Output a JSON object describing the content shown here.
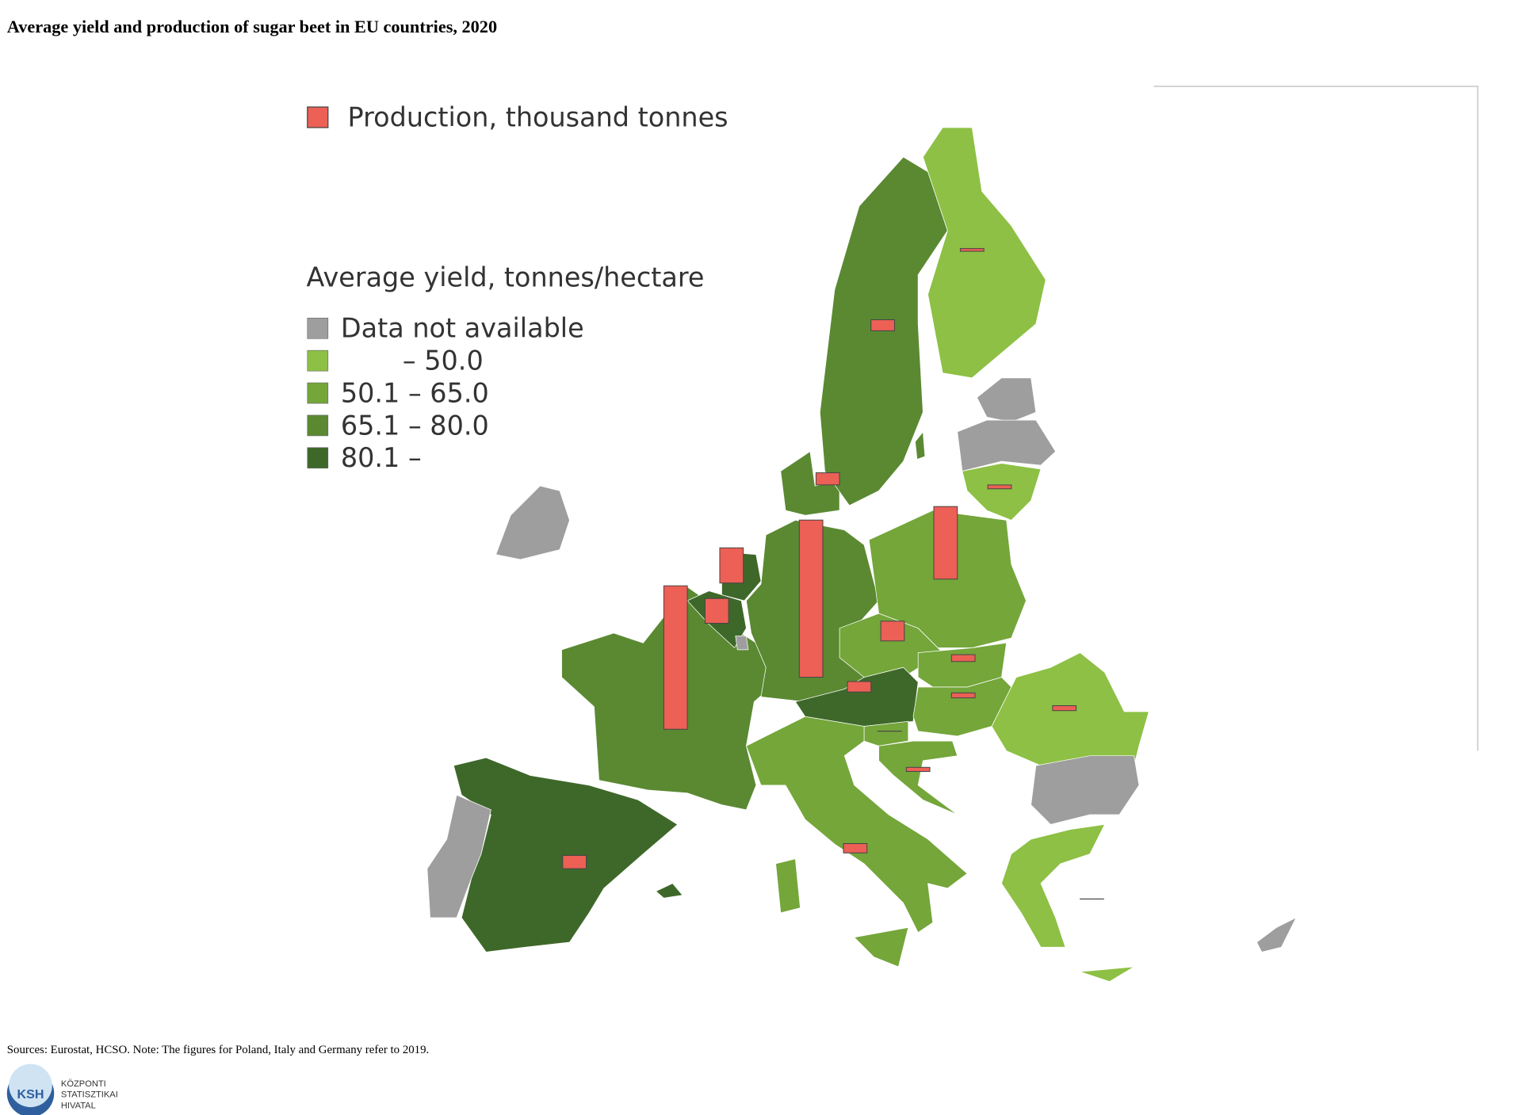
{
  "title": "Average yield and production of sugar beet in EU countries, 2020",
  "legend": {
    "production_label": "Production, thousand tonnes",
    "production_color": "#ec6055",
    "yield_title": "Average yield, tonnes/hectare",
    "na": {
      "label": "Data not available",
      "color": "#9e9e9e"
    },
    "classes": [
      {
        "label": "– 50.0",
        "upto": 50,
        "color": "#8dc044"
      },
      {
        "label": "50.1 – 65.0",
        "upto": 65,
        "color": "#74a63a"
      },
      {
        "label": "65.1 – 80.0",
        "upto": 80,
        "color": "#5a8932"
      },
      {
        "label": "80.1 –",
        "upto": null,
        "color": "#3e6829"
      }
    ]
  },
  "regions": [
    {
      "yield": 72,
      "production": 26100
    },
    {
      "yield": 85,
      "production": 2400
    },
    {
      "yield": null,
      "production": null
    },
    {
      "yield": 82,
      "production": 4500
    },
    {
      "yield": 83,
      "production": 6400
    },
    {
      "yield": null,
      "production": null
    },
    {
      "yield": 74,
      "production": 28600
    },
    {
      "yield": 70,
      "production": 2200
    },
    {
      "yield": 68,
      "production": 2000
    },
    {
      "yield": 40,
      "production": 500
    },
    {
      "yield": null,
      "production": null
    },
    {
      "yield": null,
      "production": null
    },
    {
      "yield": 48,
      "production": 700
    },
    {
      "yield": 60,
      "production": 13200
    },
    {
      "yield": 60,
      "production": 3600
    },
    {
      "yield": 58,
      "production": 1250
    },
    {
      "yield": 82,
      "production": 1900
    },
    {
      "yield": 58,
      "production": 900
    },
    {
      "yield": 56,
      "production": 20
    },
    {
      "yield": 56,
      "production": 750
    },
    {
      "yield": 58,
      "production": 1700
    },
    {
      "yield": 38,
      "production": 900
    },
    {
      "yield": null,
      "production": null
    },
    {
      "yield": 45,
      "production": 30
    },
    {
      "yield": null,
      "production": null
    },
    {
      "yield": null,
      "production": null
    }
  ],
  "source": "Sources: Eurostat, HCSO. Note: The figures for Poland, Italy and Germany refer to 2019.",
  "logo": {
    "abbr": "KSH",
    "lines": [
      "KÖZPONTI",
      "STATISZTIKAI",
      "HIVATAL"
    ]
  }
}
